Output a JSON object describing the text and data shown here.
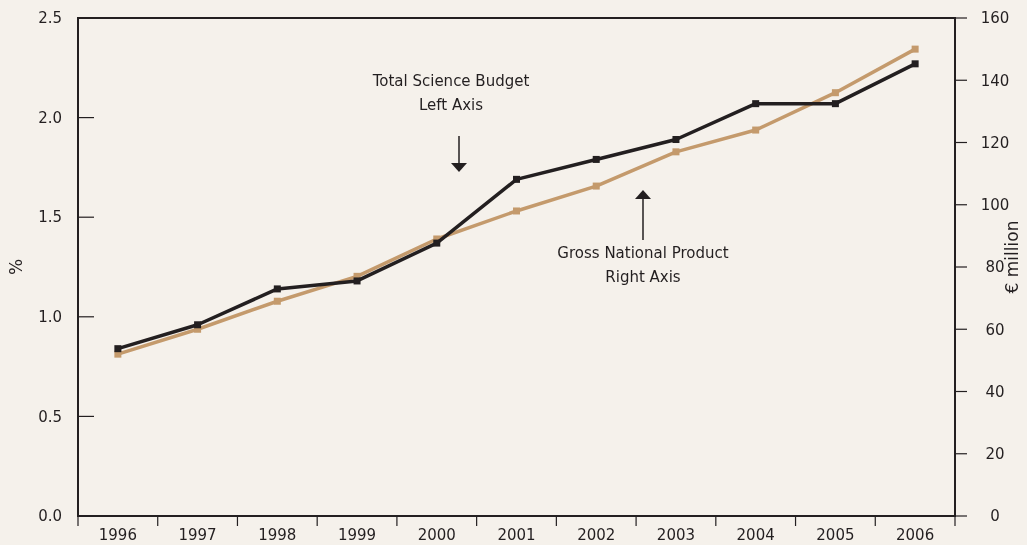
{
  "chart_data": {
    "type": "line",
    "ylabel": "%",
    "y2label": "€ million",
    "categories": [
      "1996",
      "1997",
      "1998",
      "1999",
      "2000",
      "2001",
      "2002",
      "2003",
      "2004",
      "2005",
      "2006"
    ],
    "series": [
      {
        "color": "#231f20",
        "values": [
          0.84,
          0.96,
          1.14,
          1.18,
          1.37,
          1.69,
          1.79,
          1.89,
          2.07,
          2.07,
          2.27
        ]
      },
      {
        "color": "#c49a6c",
        "axis": "y2",
        "values": [
          52,
          60,
          69,
          77,
          89,
          98,
          106,
          117,
          124,
          136,
          150
        ]
      }
    ],
    "ylim": [
      0,
      2.5
    ],
    "yticks": [
      {
        "value": 0,
        "label": "0.0"
      },
      0.5,
      {
        "value": 1,
        "label": "1.0"
      },
      1.5,
      {
        "value": 2,
        "label": "2.0"
      },
      2.5
    ],
    "y2lim": [
      0,
      160
    ],
    "y2ticks": [
      0,
      20,
      40,
      60,
      80,
      100,
      120,
      140,
      160
    ],
    "annotations": [
      "Total Science Budget\nLeft Axis",
      "Gross National Product\nRight Axis"
    ],
    "marker": "square",
    "line_style": "solid",
    "grid": false
  }
}
